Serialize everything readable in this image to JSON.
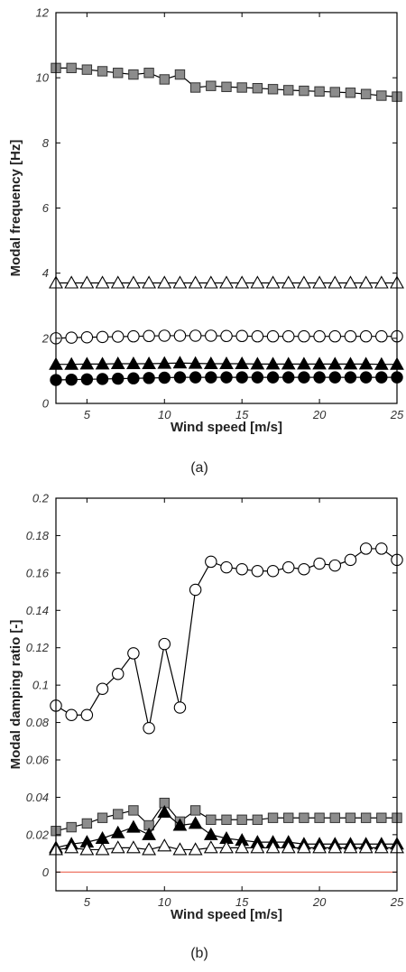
{
  "colors": {
    "background": "#ffffff",
    "axis": "#000000",
    "grey_marker": "#8c8c8c",
    "zero_line": "#e8503a"
  },
  "chart_data": [
    {
      "type": "line",
      "caption": "(a)",
      "xlabel": "Wind speed [m/s]",
      "ylabel": "Modal frequency [Hz]",
      "xlim": [
        3,
        25
      ],
      "ylim": [
        0,
        12
      ],
      "xticks": [
        5,
        10,
        15,
        20,
        25
      ],
      "yticks": [
        0,
        2,
        4,
        6,
        8,
        10,
        12
      ],
      "ytick_labels": [
        "0",
        "2",
        "4",
        "6",
        "8",
        "10",
        "12"
      ],
      "grid": false,
      "x": [
        3,
        4,
        5,
        6,
        7,
        8,
        9,
        10,
        11,
        12,
        13,
        14,
        15,
        16,
        17,
        18,
        19,
        20,
        21,
        22,
        23,
        24,
        25
      ],
      "series": [
        {
          "marker": "square-grey",
          "values": [
            10.3,
            10.3,
            10.25,
            10.2,
            10.15,
            10.1,
            10.15,
            9.95,
            10.1,
            9.7,
            9.75,
            9.72,
            9.7,
            9.68,
            9.65,
            9.62,
            9.6,
            9.58,
            9.56,
            9.54,
            9.5,
            9.45,
            9.42
          ]
        },
        {
          "marker": "triangle-open",
          "values": [
            3.7,
            3.7,
            3.7,
            3.7,
            3.7,
            3.7,
            3.7,
            3.7,
            3.7,
            3.7,
            3.7,
            3.7,
            3.7,
            3.7,
            3.7,
            3.7,
            3.7,
            3.7,
            3.7,
            3.7,
            3.7,
            3.7,
            3.7
          ]
        },
        {
          "marker": "circle-open",
          "values": [
            2.0,
            2.02,
            2.03,
            2.04,
            2.05,
            2.06,
            2.07,
            2.08,
            2.08,
            2.08,
            2.08,
            2.07,
            2.07,
            2.06,
            2.06,
            2.06,
            2.06,
            2.06,
            2.06,
            2.06,
            2.06,
            2.06,
            2.06
          ]
        },
        {
          "marker": "triangle-filled",
          "values": [
            1.2,
            1.2,
            1.21,
            1.21,
            1.22,
            1.22,
            1.22,
            1.23,
            1.24,
            1.23,
            1.22,
            1.22,
            1.22,
            1.21,
            1.21,
            1.21,
            1.21,
            1.21,
            1.21,
            1.21,
            1.21,
            1.2,
            1.2
          ]
        },
        {
          "marker": "circle-filled",
          "values": [
            0.72,
            0.73,
            0.74,
            0.75,
            0.76,
            0.77,
            0.78,
            0.79,
            0.8,
            0.8,
            0.8,
            0.8,
            0.8,
            0.8,
            0.8,
            0.8,
            0.8,
            0.8,
            0.8,
            0.8,
            0.8,
            0.8,
            0.8
          ]
        }
      ]
    },
    {
      "type": "line",
      "caption": "(b)",
      "xlabel": "Wind speed [m/s]",
      "ylabel": "Modal damping ratio [-]",
      "xlim": [
        3,
        25
      ],
      "ylim": [
        -0.01,
        0.2
      ],
      "xticks": [
        5,
        10,
        15,
        20,
        25
      ],
      "yticks": [
        0,
        0.02,
        0.04,
        0.06,
        0.08,
        0.1,
        0.12,
        0.14,
        0.16,
        0.18,
        0.2
      ],
      "ytick_labels": [
        "0",
        "0.02",
        "0.04",
        "0.06",
        "0.08",
        "0.1",
        "0.12",
        "0.14",
        "0.16",
        "0.18",
        "0.2"
      ],
      "grid": false,
      "x": [
        3,
        4,
        5,
        6,
        7,
        8,
        9,
        10,
        11,
        12,
        13,
        14,
        15,
        16,
        17,
        18,
        19,
        20,
        21,
        22,
        23,
        24,
        25
      ],
      "reference_line": {
        "y": 0,
        "color": "#e8503a"
      },
      "series": [
        {
          "marker": "circle-open",
          "values": [
            0.089,
            0.084,
            0.084,
            0.098,
            0.106,
            0.117,
            0.077,
            0.122,
            0.088,
            0.151,
            0.166,
            0.163,
            0.162,
            0.161,
            0.161,
            0.163,
            0.162,
            0.165,
            0.164,
            0.167,
            0.173,
            0.173,
            0.167
          ]
        },
        {
          "marker": "square-grey",
          "values": [
            0.022,
            0.024,
            0.026,
            0.029,
            0.031,
            0.033,
            0.025,
            0.037,
            0.027,
            0.033,
            0.028,
            0.028,
            0.028,
            0.028,
            0.029,
            0.029,
            0.029,
            0.029,
            0.029,
            0.029,
            0.029,
            0.029,
            0.029
          ]
        },
        {
          "marker": "triangle-filled",
          "values": [
            0.013,
            0.015,
            0.016,
            0.018,
            0.021,
            0.024,
            0.02,
            0.032,
            0.025,
            0.026,
            0.02,
            0.018,
            0.017,
            0.016,
            0.016,
            0.016,
            0.015,
            0.015,
            0.015,
            0.015,
            0.015,
            0.015,
            0.015
          ]
        },
        {
          "marker": "triangle-open",
          "values": [
            0.012,
            0.013,
            0.012,
            0.012,
            0.013,
            0.013,
            0.012,
            0.014,
            0.012,
            0.012,
            0.013,
            0.013,
            0.013,
            0.013,
            0.013,
            0.013,
            0.013,
            0.013,
            0.013,
            0.013,
            0.013,
            0.013,
            0.013
          ]
        }
      ]
    }
  ]
}
